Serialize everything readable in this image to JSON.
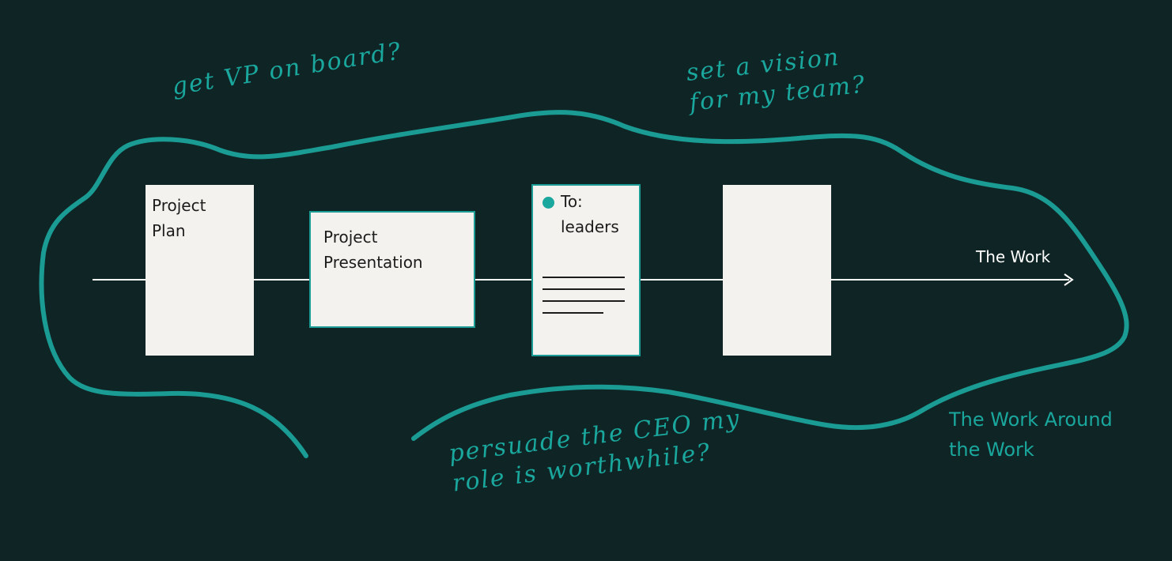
{
  "colors": {
    "background": "#0f2424",
    "accent": "#1aa79d",
    "card": "#f3f2ee",
    "flow_line": "#ffffff"
  },
  "flow": {
    "label": "The Work"
  },
  "cards": {
    "plan": "Project\nPlan",
    "presentation": "Project\nPresentation",
    "memo_to": "To:\nleaders",
    "blank": ""
  },
  "outer": {
    "label": "The Work Around\nthe Work"
  },
  "notes": {
    "vp": "get VP on board?",
    "vision": "set a vision\nfor my team?",
    "ceo": "persuade the CEO my\nrole is worthwhile?"
  }
}
